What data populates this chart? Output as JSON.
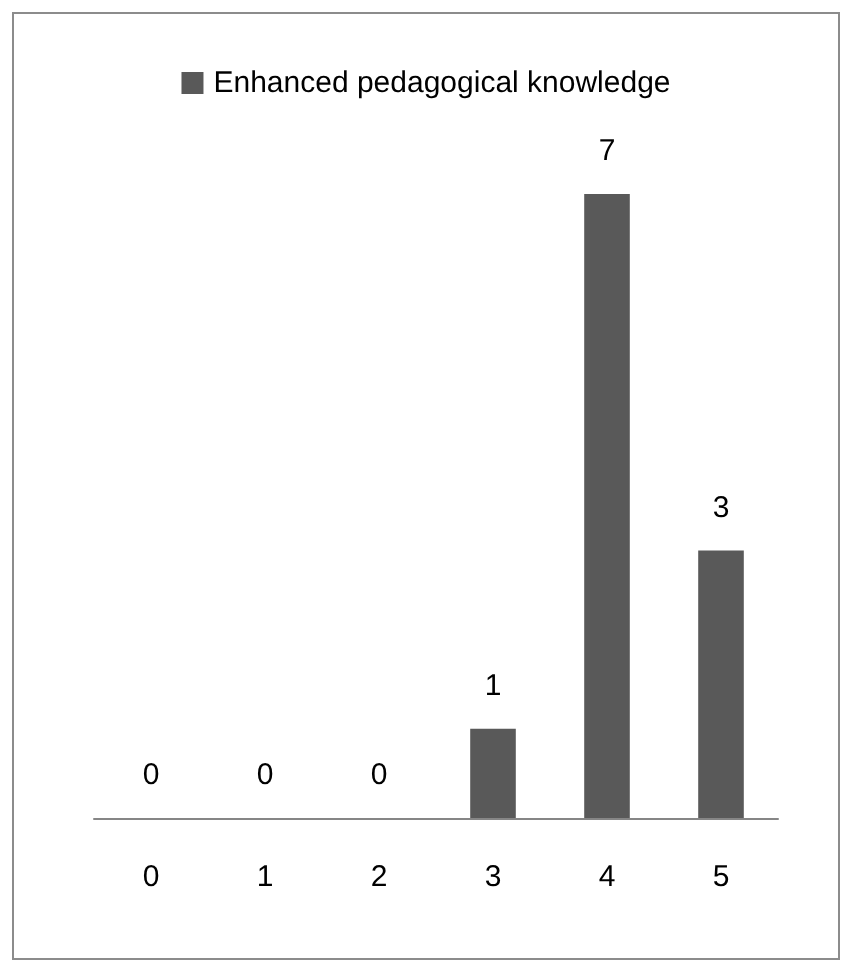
{
  "chart_data": {
    "type": "bar",
    "categories": [
      "0",
      "1",
      "2",
      "3",
      "4",
      "5"
    ],
    "series": [
      {
        "name": "Enhanced pedagogical knowledge",
        "color": "#595959",
        "values": [
          0,
          0,
          0,
          1,
          7,
          3
        ]
      }
    ],
    "data_labels": true,
    "legend": "top",
    "grid": false,
    "tick_labels": "x"
  }
}
